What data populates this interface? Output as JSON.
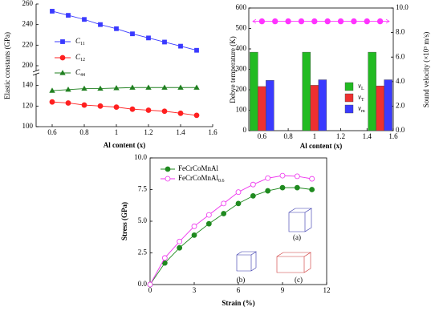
{
  "chart_data": [
    {
      "type": "line",
      "xlabel": "Al content (x)",
      "ylabel": "Elastic constants (GPa)",
      "x": [
        0.6,
        0.7,
        0.8,
        0.9,
        1.0,
        1.1,
        1.2,
        1.3,
        1.4,
        1.5
      ],
      "xlim": [
        0.5,
        1.6
      ],
      "xticks": [
        0.6,
        0.8,
        1.0,
        1.2,
        1.4,
        1.6
      ],
      "ylim": [
        100,
        260
      ],
      "axis_break": [
        150,
        197
      ],
      "yticks": [
        100,
        120,
        140,
        200,
        220,
        240,
        260
      ],
      "series": [
        {
          "name": "C",
          "subscript": "11",
          "color": "#3a3aff",
          "marker": "square",
          "values": [
            253,
            249,
            245,
            240,
            236,
            231,
            227,
            223,
            219,
            215
          ]
        },
        {
          "name": "C",
          "subscript": "12",
          "color": "#ff2020",
          "marker": "circle",
          "values": [
            124,
            123,
            121,
            120,
            119,
            117,
            116,
            115,
            113,
            111
          ]
        },
        {
          "name": "C",
          "subscript": "44",
          "color": "#208020",
          "marker": "triangle",
          "values": [
            135,
            136,
            137,
            137,
            137.5,
            138,
            138,
            138,
            138,
            138
          ]
        }
      ]
    },
    {
      "type": "bar",
      "xlabel": "Al content (x)",
      "ylabel": "Debye temperature (K)",
      "y2label": "Sound velocity (×10³ m/s)",
      "x": [
        0.6,
        1.0,
        1.5
      ],
      "xlim": [
        0.5,
        1.6
      ],
      "xticks": [
        0.6,
        0.8,
        1.0,
        1.2,
        1.4,
        1.6
      ],
      "ylim": [
        0,
        600
      ],
      "yticks": [
        0,
        100,
        200,
        300,
        400,
        500,
        600
      ],
      "y2lim": [
        0,
        10
      ],
      "y2ticks": [
        {
          "value": 0,
          "label": "0.0"
        },
        {
          "value": 2,
          "label": "2.0"
        },
        {
          "value": 4,
          "label": "4.0"
        },
        {
          "value": 6,
          "label": "6.0"
        },
        {
          "value": 8,
          "label": "8.0"
        },
        {
          "value": 10,
          "label": "10.0"
        }
      ],
      "series": [
        {
          "name": "v",
          "subscript": "L",
          "color": "#22bb22",
          "axis": "y2",
          "values": [
            6.4,
            6.4,
            6.4
          ]
        },
        {
          "name": "v",
          "subscript": "T",
          "color": "#ee3030",
          "axis": "y2",
          "values": [
            3.6,
            3.7,
            3.65
          ]
        },
        {
          "name": "v",
          "subscript": "m",
          "color": "#3a3aff",
          "axis": "y2",
          "values": [
            4.1,
            4.15,
            4.15
          ]
        }
      ],
      "overlay": {
        "type": "line",
        "color": "#ff33ff",
        "x": [
          0.6,
          0.7,
          0.8,
          0.9,
          1.0,
          1.1,
          1.2,
          1.3,
          1.4,
          1.5
        ],
        "values": [
          535,
          535,
          535,
          535,
          535,
          535,
          535,
          535,
          535,
          535
        ]
      }
    },
    {
      "type": "line",
      "xlabel": "Strain (%)",
      "ylabel": "Stress (GPa)",
      "x": [
        0,
        1,
        2,
        3,
        4,
        5,
        6,
        7,
        8,
        9,
        10,
        11
      ],
      "xlim": [
        0,
        12
      ],
      "xticks": [
        0,
        3,
        6,
        9,
        12
      ],
      "ylim": [
        0,
        10
      ],
      "yticks": [
        {
          "value": 0,
          "label": "0.0"
        },
        {
          "value": 2.5,
          "label": "2.5"
        },
        {
          "value": 5,
          "label": "5.0"
        },
        {
          "value": 7.5,
          "label": "7.5"
        },
        {
          "value": 10,
          "label": "10.0"
        }
      ],
      "series": [
        {
          "name": "FeCrCoMnAl",
          "color": "#1f8a1f",
          "marker": "circle",
          "values": [
            0,
            1.7,
            2.9,
            3.9,
            4.8,
            5.6,
            6.4,
            7.0,
            7.4,
            7.65,
            7.65,
            7.5
          ]
        },
        {
          "name": "FeCrCoMnAl",
          "subscript": "0.6",
          "color": "#ee33ee",
          "marker": "open-circle",
          "values": [
            0,
            2.1,
            3.4,
            4.6,
            5.5,
            6.4,
            7.3,
            7.9,
            8.4,
            8.6,
            8.55,
            8.35
          ]
        }
      ],
      "insets": [
        "(a)",
        "(b)",
        "(c)"
      ]
    }
  ]
}
